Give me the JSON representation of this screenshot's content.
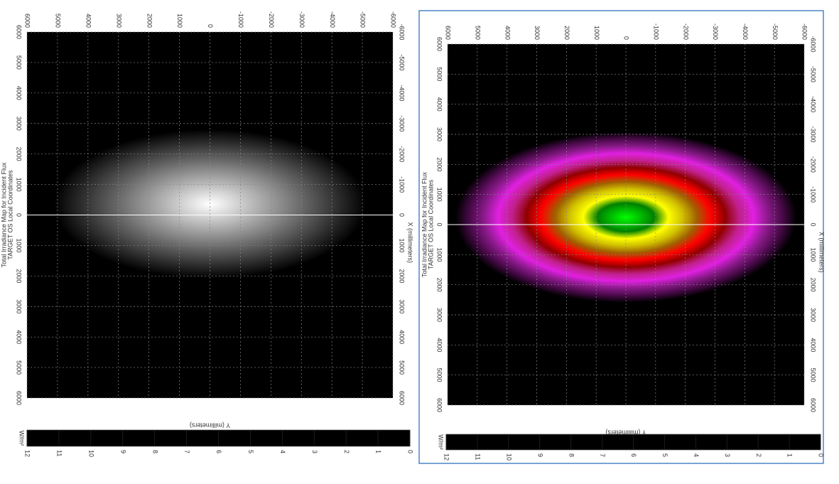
{
  "chart_data": [
    {
      "type": "heatmap",
      "title": "Total Irradiance Map for Incident Flux",
      "subtitle": "TARGET OS Local Coordinates",
      "x_label": "X (millimeters)",
      "y_label": "Y (millimeters)",
      "xlim": [
        -6000,
        6000
      ],
      "xticks": [
        -6000,
        -5000,
        -4000,
        -3000,
        -2000,
        -1000,
        0,
        1000,
        2000,
        3000,
        4000,
        5000,
        6000
      ],
      "xticks_left": [
        {
          "value": -6000,
          "label": "6000"
        },
        {
          "value": -5000,
          "label": "5000"
        },
        {
          "value": -4000,
          "label": "4000"
        },
        {
          "value": -3000,
          "label": "3000"
        },
        {
          "value": -2000,
          "label": "2000"
        },
        {
          "value": -1000,
          "label": "1000"
        },
        0,
        1000,
        2000,
        3000,
        4000,
        5000,
        6000
      ],
      "ylim": [
        6000,
        -6000
      ],
      "yticks": [
        6000,
        5000,
        4000,
        3000,
        2000,
        1000,
        0,
        -1000,
        -2000,
        -3000,
        -4000,
        -5000,
        -6000
      ],
      "grid": true,
      "colorbar_label": "W/m²",
      "clim": [
        0,
        12
      ],
      "cticks": [
        12,
        11,
        10,
        9,
        8,
        7,
        6,
        5,
        4,
        3,
        2,
        1,
        0
      ],
      "colormap": [
        "#000000",
        "#151515",
        "#2a2a2a",
        "#404040",
        "#555555",
        "#6a6a6a",
        "#808080",
        "#959595",
        "#aaaaaa",
        "#bfbfbf",
        "#d5d5d5",
        "#eaeaea",
        "#ffffff"
      ]
    },
    {
      "type": "heatmap",
      "title": "Total Irradiance Map for Incident Flux",
      "subtitle": "TARGET OS Local Coordinates",
      "x_label": "X (millimeters)",
      "y_label": "Y (millimeters)",
      "xlim": [
        -6000,
        6000
      ],
      "xticks": [
        -6000,
        -5000,
        -4000,
        -3000,
        -2000,
        -1000,
        0,
        1000,
        2000,
        3000,
        4000,
        5000,
        6000
      ],
      "xticks_left": [
        {
          "value": -6000,
          "label": "6000"
        },
        {
          "value": -5000,
          "label": "5000"
        },
        {
          "value": -4000,
          "label": "4000"
        },
        {
          "value": -3000,
          "label": "3000"
        },
        {
          "value": -2000,
          "label": "2000"
        },
        {
          "value": -1000,
          "label": "1000"
        },
        0,
        1000,
        2000,
        3000,
        4000,
        5000,
        6000
      ],
      "ylim": [
        6000,
        -6000
      ],
      "yticks": [
        6000,
        5000,
        4000,
        3000,
        2000,
        1000,
        0,
        -1000,
        -2000,
        -3000,
        -4000,
        -5000,
        -6000
      ],
      "grid": true,
      "colorbar_label": "W/m²",
      "clim": [
        0,
        12
      ],
      "cticks": [
        12,
        11,
        10,
        9,
        8,
        7,
        6,
        5,
        4,
        3,
        2,
        1,
        0
      ],
      "colormap": [
        "#000000",
        "#4a0a4a",
        "#8a1a8a",
        "#e020e0",
        "#c0208a",
        "#900000",
        "#ff0000",
        "#a06000",
        "#d0c000",
        "#ffff00",
        "#008000",
        "#00c000",
        "#00ff00"
      ]
    }
  ]
}
